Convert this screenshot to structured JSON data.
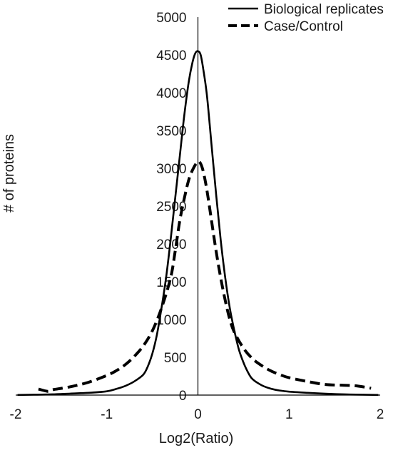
{
  "chart_data": {
    "type": "line",
    "title": "",
    "xlabel": "Log2(Ratio)",
    "ylabel": "# of proteins",
    "xlim": [
      -2,
      2
    ],
    "ylim": [
      0,
      5000
    ],
    "x_ticks": [
      -2,
      -1,
      0,
      1,
      2
    ],
    "y_ticks": [
      0,
      500,
      1000,
      1500,
      2000,
      2500,
      3000,
      3500,
      4000,
      4500,
      5000
    ],
    "grid": false,
    "legend_position": "top-right",
    "series": [
      {
        "name": "Biological replicates",
        "line_style": "solid",
        "color": "#000000",
        "points": [
          [
            -1.98,
            2
          ],
          [
            -1.8,
            5
          ],
          [
            -1.6,
            10
          ],
          [
            -1.4,
            20
          ],
          [
            -1.2,
            30
          ],
          [
            -1.0,
            50
          ],
          [
            -0.9,
            80
          ],
          [
            -0.8,
            120
          ],
          [
            -0.7,
            180
          ],
          [
            -0.6,
            270
          ],
          [
            -0.55,
            380
          ],
          [
            -0.5,
            550
          ],
          [
            -0.45,
            800
          ],
          [
            -0.4,
            1150
          ],
          [
            -0.35,
            1550
          ],
          [
            -0.3,
            2050
          ],
          [
            -0.25,
            2600
          ],
          [
            -0.2,
            3150
          ],
          [
            -0.15,
            3700
          ],
          [
            -0.1,
            4150
          ],
          [
            -0.06,
            4400
          ],
          [
            -0.03,
            4520
          ],
          [
            0.0,
            4550
          ],
          [
            0.03,
            4500
          ],
          [
            0.06,
            4300
          ],
          [
            0.1,
            3950
          ],
          [
            0.15,
            3300
          ],
          [
            0.2,
            2650
          ],
          [
            0.25,
            2050
          ],
          [
            0.3,
            1550
          ],
          [
            0.35,
            1150
          ],
          [
            0.4,
            850
          ],
          [
            0.45,
            600
          ],
          [
            0.5,
            430
          ],
          [
            0.55,
            300
          ],
          [
            0.6,
            210
          ],
          [
            0.7,
            130
          ],
          [
            0.8,
            85
          ],
          [
            0.9,
            60
          ],
          [
            1.0,
            45
          ],
          [
            1.2,
            30
          ],
          [
            1.4,
            18
          ],
          [
            1.6,
            10
          ],
          [
            1.8,
            5
          ],
          [
            1.98,
            2
          ]
        ]
      },
      {
        "name": "Case/Control",
        "line_style": "dashed",
        "color": "#000000",
        "points": [
          [
            -1.75,
            80
          ],
          [
            -1.65,
            50
          ],
          [
            -1.6,
            70
          ],
          [
            -1.4,
            110
          ],
          [
            -1.2,
            170
          ],
          [
            -1.0,
            260
          ],
          [
            -0.9,
            320
          ],
          [
            -0.8,
            400
          ],
          [
            -0.7,
            510
          ],
          [
            -0.6,
            650
          ],
          [
            -0.5,
            850
          ],
          [
            -0.4,
            1150
          ],
          [
            -0.3,
            1550
          ],
          [
            -0.25,
            1900
          ],
          [
            -0.2,
            2300
          ],
          [
            -0.15,
            2600
          ],
          [
            -0.1,
            2850
          ],
          [
            -0.05,
            3000
          ],
          [
            0.0,
            3090
          ],
          [
            0.03,
            3060
          ],
          [
            0.06,
            2950
          ],
          [
            0.1,
            2700
          ],
          [
            0.15,
            2300
          ],
          [
            0.2,
            1900
          ],
          [
            0.25,
            1550
          ],
          [
            0.3,
            1250
          ],
          [
            0.35,
            1000
          ],
          [
            0.4,
            830
          ],
          [
            0.5,
            620
          ],
          [
            0.6,
            480
          ],
          [
            0.7,
            390
          ],
          [
            0.8,
            320
          ],
          [
            0.9,
            270
          ],
          [
            1.0,
            230
          ],
          [
            1.2,
            180
          ],
          [
            1.4,
            140
          ],
          [
            1.6,
            130
          ],
          [
            1.75,
            120
          ],
          [
            1.9,
            90
          ]
        ]
      }
    ]
  }
}
